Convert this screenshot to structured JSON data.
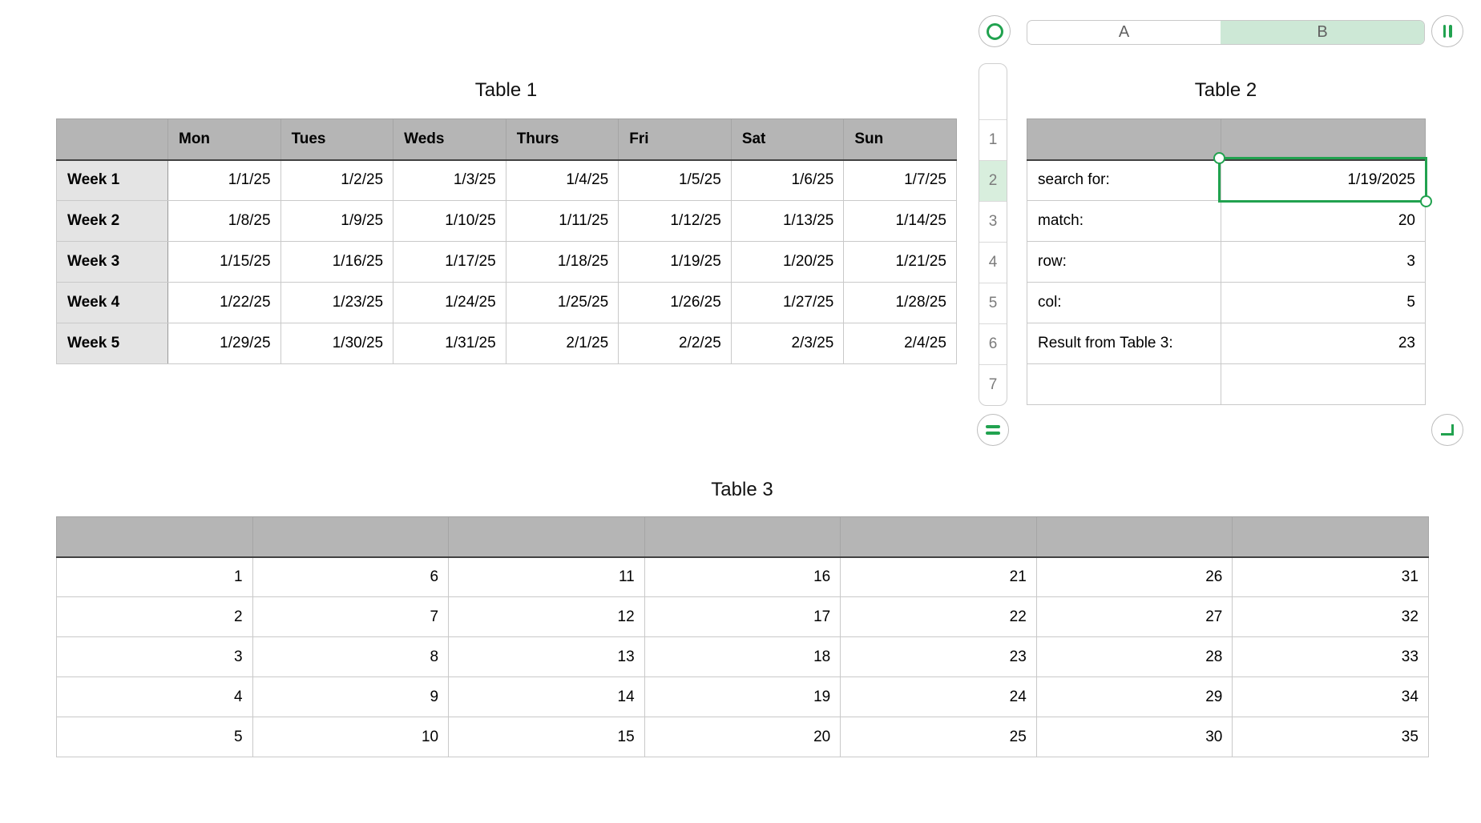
{
  "toolbar": {
    "ring_button_icon": "circle-outline",
    "pause_button_icon": "double-vertical-bar",
    "equals_button_icon": "equals",
    "corner_button_icon": "return-corner",
    "column_tabs": [
      "A",
      "B"
    ],
    "selected_column_tab": "B"
  },
  "row_strip": {
    "numbers": [
      "1",
      "2",
      "3",
      "4",
      "5",
      "6",
      "7"
    ],
    "highlighted": "2"
  },
  "table1": {
    "title": "Table 1",
    "column_headers": [
      "Mon",
      "Tues",
      "Weds",
      "Thurs",
      "Fri",
      "Sat",
      "Sun"
    ],
    "row_headers": [
      "Week 1",
      "Week 2",
      "Week 3",
      "Week 4",
      "Week 5"
    ],
    "rows": [
      [
        "1/1/25",
        "1/2/25",
        "1/3/25",
        "1/4/25",
        "1/5/25",
        "1/6/25",
        "1/7/25"
      ],
      [
        "1/8/25",
        "1/9/25",
        "1/10/25",
        "1/11/25",
        "1/12/25",
        "1/13/25",
        "1/14/25"
      ],
      [
        "1/15/25",
        "1/16/25",
        "1/17/25",
        "1/18/25",
        "1/19/25",
        "1/20/25",
        "1/21/25"
      ],
      [
        "1/22/25",
        "1/23/25",
        "1/24/25",
        "1/25/25",
        "1/26/25",
        "1/27/25",
        "1/28/25"
      ],
      [
        "1/29/25",
        "1/30/25",
        "1/31/25",
        "2/1/25",
        "2/2/25",
        "2/3/25",
        "2/4/25"
      ]
    ]
  },
  "table2": {
    "title": "Table 2",
    "rows": [
      {
        "label": "search for:",
        "value": "1/19/2025"
      },
      {
        "label": "match:",
        "value": "20"
      },
      {
        "label": "row:",
        "value": "3"
      },
      {
        "label": "col:",
        "value": "5"
      },
      {
        "label": "Result from Table 3:",
        "value": "23"
      },
      {
        "label": "",
        "value": ""
      }
    ],
    "selected_cell": {
      "row": "2",
      "column": "B",
      "value": "1/19/2025"
    }
  },
  "table3": {
    "title": "Table 3",
    "rows": [
      [
        "1",
        "6",
        "11",
        "16",
        "21",
        "26",
        "31"
      ],
      [
        "2",
        "7",
        "12",
        "17",
        "22",
        "27",
        "32"
      ],
      [
        "3",
        "8",
        "13",
        "18",
        "23",
        "28",
        "33"
      ],
      [
        "4",
        "9",
        "14",
        "19",
        "24",
        "29",
        "34"
      ],
      [
        "5",
        "10",
        "15",
        "20",
        "25",
        "30",
        "35"
      ]
    ]
  },
  "colors": {
    "accent_green": "#21a24f",
    "header_gray": "#b5b5b5",
    "row_header_gray": "#e4e4e4",
    "selected_tab_tint": "#cde8d6",
    "row_highlight_tint": "#d8eedd"
  }
}
